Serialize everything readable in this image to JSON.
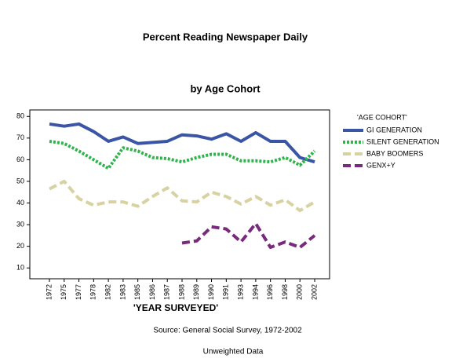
{
  "chart_data": {
    "type": "line",
    "title": "Percent Reading Newspaper Daily",
    "subtitle": "by Age Cohort",
    "x_label": "'YEAR SURVEYED'",
    "legend_title": "'AGE COHORT'",
    "legend": "right",
    "source": "Source: General Social Survey, 1972-2002",
    "note": "Unweighted Data",
    "categories": [
      "1972",
      "1975",
      "1977",
      "1978",
      "1982",
      "1983",
      "1985",
      "1986",
      "1987",
      "1988",
      "1989",
      "1990",
      "1991",
      "1993",
      "1994",
      "1996",
      "1998",
      "2000",
      "2002"
    ],
    "ylim": [
      5,
      83
    ],
    "yticks": [
      10,
      20,
      30,
      40,
      50,
      60,
      70,
      80
    ],
    "series": [
      {
        "name": "GI GENERATION",
        "color": "#3b55a6",
        "style": "solid",
        "values": [
          76.5,
          75.5,
          76.5,
          73,
          68.5,
          70.5,
          67.5,
          68,
          68.5,
          71.5,
          71,
          69.5,
          72,
          68.5,
          72.5,
          68.5,
          68.5,
          61,
          59
        ]
      },
      {
        "name": "SILENT GENERATION",
        "color": "#2fb44b",
        "style": "dotted",
        "values": [
          68.5,
          67.5,
          64,
          60,
          56,
          65.5,
          64,
          61,
          60.5,
          59,
          61,
          62.5,
          62.5,
          59.5,
          59.5,
          59,
          61,
          57.5,
          64
        ]
      },
      {
        "name": "BABY BOOMERS",
        "color": "#d8d2a2",
        "style": "dashed",
        "values": [
          46.5,
          50,
          42,
          39,
          40.5,
          40.5,
          38.5,
          43,
          47,
          41,
          40.5,
          45,
          43,
          39.5,
          43,
          39,
          41.5,
          36.5,
          40.5
        ]
      },
      {
        "name": "GENX+Y",
        "color": "#7a2a7c",
        "style": "dashed",
        "values": [
          null,
          null,
          null,
          null,
          null,
          null,
          null,
          null,
          null,
          21.5,
          22.5,
          29,
          28,
          22,
          30.5,
          19.5,
          22,
          19.5,
          25
        ]
      }
    ]
  }
}
